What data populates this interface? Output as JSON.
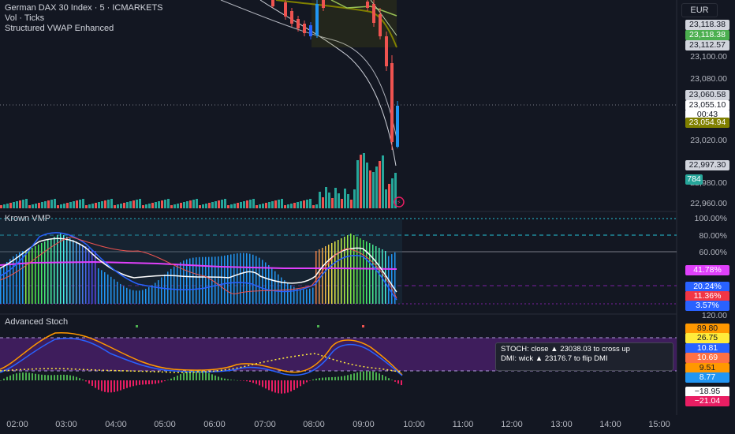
{
  "header": {
    "symbol_line": "German DAX 30 Index · 5 · ICMARKETS",
    "vol_line": "Vol · Ticks",
    "vwap_line": "Structured VWAP Enhanced"
  },
  "currency": "EUR",
  "price_axis": {
    "ticks": [
      "23,100.00",
      "23,080.00",
      "23,020.00",
      "22,980.00",
      "22,960.00"
    ],
    "boxes": [
      {
        "label": "23,118.38",
        "bg": "#d1d4dc",
        "fg": "#131722"
      },
      {
        "label": "23,118.38",
        "bg": "#4caf50",
        "fg": "#ffffff"
      },
      {
        "label": "23,112.57",
        "bg": "#d1d4dc",
        "fg": "#131722"
      },
      {
        "label": "23,060.58",
        "bg": "#d1d4dc",
        "fg": "#131722"
      },
      {
        "label": "23,055.10",
        "bg": "#ffffff",
        "fg": "#131722"
      },
      {
        "label": "00:43",
        "bg": "#ffffff",
        "fg": "#131722"
      },
      {
        "label": "23,054.94",
        "bg": "#808000",
        "fg": "#ffffff"
      },
      {
        "label": "22,997.30",
        "bg": "#d1d4dc",
        "fg": "#131722"
      },
      {
        "label": "784",
        "bg": "#26a69a",
        "fg": "#ffffff"
      }
    ]
  },
  "vmp_pane": {
    "title": "Krown VMP",
    "ticks": [
      "100.00%",
      "80.00%",
      "60.00%"
    ],
    "boxes": [
      {
        "label": "41.78%",
        "bg": "#e040fb",
        "fg": "#ffffff"
      },
      {
        "label": "20.24%",
        "bg": "#2962ff",
        "fg": "#ffffff"
      },
      {
        "label": "11.36%",
        "bg": "#f23645",
        "fg": "#ffffff"
      },
      {
        "label": "3.57%",
        "bg": "#2962ff",
        "fg": "#ffffff"
      }
    ]
  },
  "stoch_pane": {
    "title": "Advanced Stoch",
    "ticks": [
      "120.00"
    ],
    "boxes": [
      {
        "label": "89.80",
        "bg": "#ff9800",
        "fg": "#131722"
      },
      {
        "label": "26.75",
        "bg": "#ffeb3b",
        "fg": "#131722"
      },
      {
        "label": "10.81",
        "bg": "#2962ff",
        "fg": "#ffffff"
      },
      {
        "label": "10.69",
        "bg": "#ff7043",
        "fg": "#ffffff"
      },
      {
        "label": "9.51",
        "bg": "#ff9800",
        "fg": "#131722"
      },
      {
        "label": "8.77",
        "bg": "#2196f3",
        "fg": "#ffffff"
      },
      {
        "label": "−18.95",
        "bg": "#ffffff",
        "fg": "#131722"
      },
      {
        "label": "−21.04",
        "bg": "#e91e63",
        "fg": "#ffffff"
      }
    ],
    "tooltip_line1": "STOCH: close ▲ 23038.03 to cross up",
    "tooltip_line2": "DMI: wick ▲ 23176.7 to flip DMI"
  },
  "time_axis": [
    "02:00",
    "03:00",
    "04:00",
    "05:00",
    "06:00",
    "07:00",
    "08:00",
    "09:00",
    "10:00",
    "11:00",
    "12:00",
    "13:00",
    "14:00",
    "15:00"
  ],
  "colors": {
    "bg": "#131722",
    "up": "#26a69a",
    "down": "#ef5350",
    "vwap": "#808000",
    "stoch_band": "#4a1f6b"
  }
}
